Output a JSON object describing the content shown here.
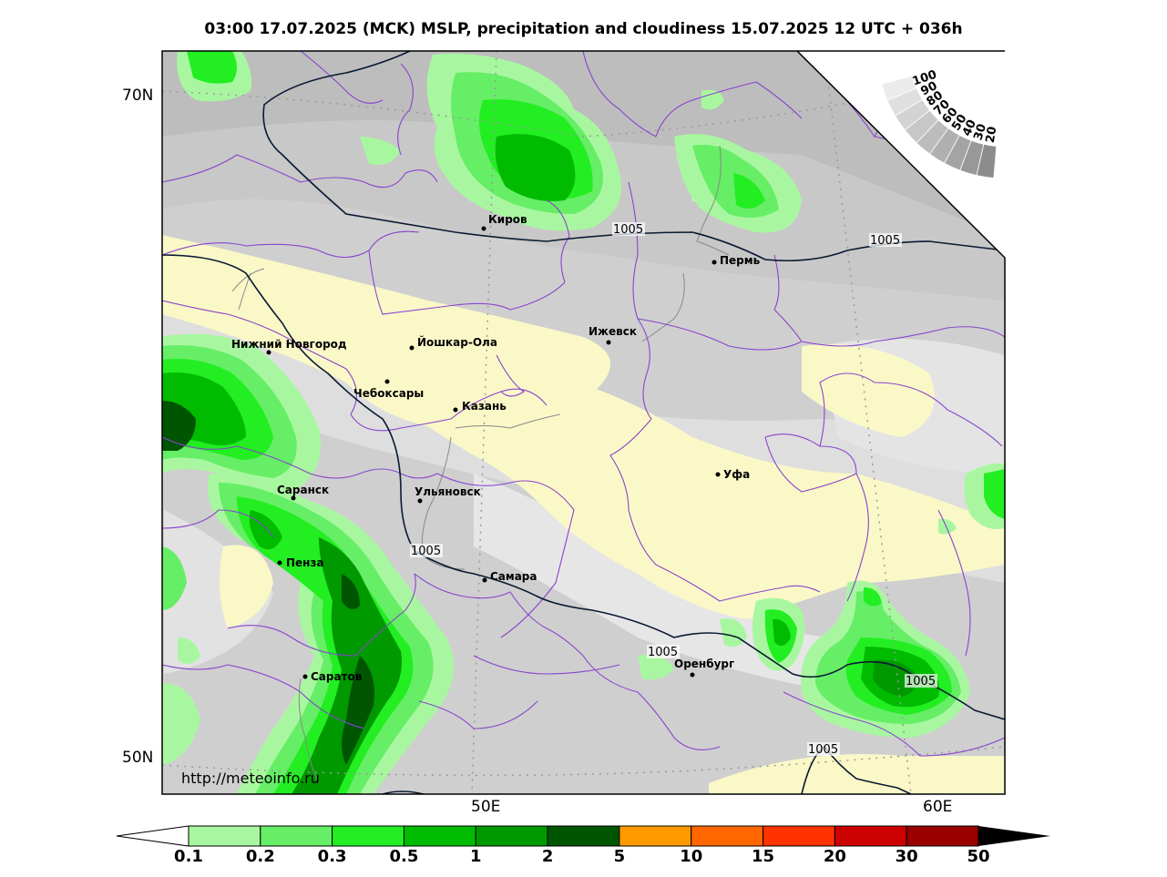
{
  "title": "03:00 17.07.2025 (MCK) MSLP, precipitation and cloudiness 15.07.2025 12 UTC + 036h",
  "url": "http://meteoinfo.ru",
  "lat_labels": [
    "70N",
    "50N"
  ],
  "lon_labels": [
    "50E",
    "60E"
  ],
  "cities": [
    {
      "name": "Киров"
    },
    {
      "name": "Пермь"
    },
    {
      "name": "Нижний Новгород"
    },
    {
      "name": "Йошкар-Ола"
    },
    {
      "name": "Ижевск"
    },
    {
      "name": "Чебоксары"
    },
    {
      "name": "Казань"
    },
    {
      "name": "Уфа"
    },
    {
      "name": "Саранск"
    },
    {
      "name": "Ульяновск"
    },
    {
      "name": "Пенза"
    },
    {
      "name": "Самара"
    },
    {
      "name": "Оренбург"
    },
    {
      "name": "Саратов"
    }
  ],
  "isobar_labels": [
    "1005",
    "1005",
    "1005",
    "1005",
    "1005",
    "1005"
  ],
  "cloud_scale": [
    "100",
    "90",
    "80",
    "70",
    "60",
    "50",
    "40",
    "30",
    "20"
  ],
  "colorbar": {
    "labels": [
      "0.1",
      "0.2",
      "0.3",
      "0.5",
      "1",
      "2",
      "5",
      "10",
      "15",
      "20",
      "30",
      "50"
    ],
    "colors": [
      "#a8f7a0",
      "#66ee66",
      "#22ee22",
      "#00bb00",
      "#009900",
      "#005500",
      "#ff9900",
      "#ff6600",
      "#ff3300",
      "#cc0000",
      "#990000"
    ]
  },
  "colors": {
    "state_border": "#8844cc",
    "isobar": "#0a1a33",
    "river": "#888888",
    "dry_zone": "#fbf8c8"
  }
}
